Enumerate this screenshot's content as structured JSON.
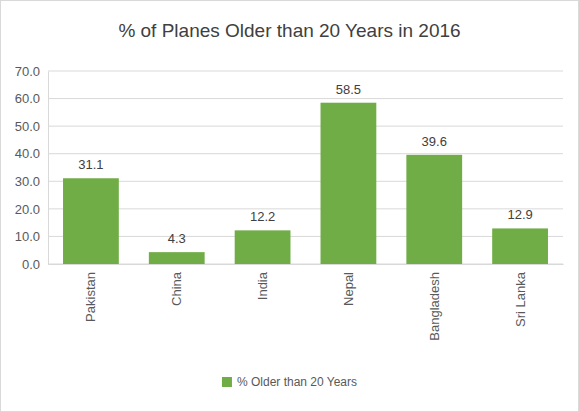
{
  "chart_data": {
    "type": "bar",
    "title": "% of Planes Older than 20 Years in 2016",
    "categories": [
      "Pakistan",
      "China",
      "India",
      "Nepal",
      "Bangladesh",
      "Sri Lanka"
    ],
    "series": [
      {
        "name": "% Older than 20 Years",
        "color": "#70ad47",
        "values": [
          31.1,
          4.3,
          12.2,
          58.5,
          39.6,
          12.9
        ]
      }
    ],
    "ylim": [
      0,
      70
    ],
    "yticks": [
      {
        "value": 0,
        "label": "0.0"
      },
      {
        "value": 10,
        "label": "10.0"
      },
      {
        "value": 20,
        "label": "20.0"
      },
      {
        "value": 30,
        "label": "30.0"
      },
      {
        "value": 40,
        "label": "40.0"
      },
      {
        "value": 50,
        "label": "50.0"
      },
      {
        "value": 60,
        "label": "60.0"
      },
      {
        "value": 70,
        "label": "70.0"
      }
    ],
    "grid": true,
    "data_labels": true,
    "legend": "bottom"
  }
}
